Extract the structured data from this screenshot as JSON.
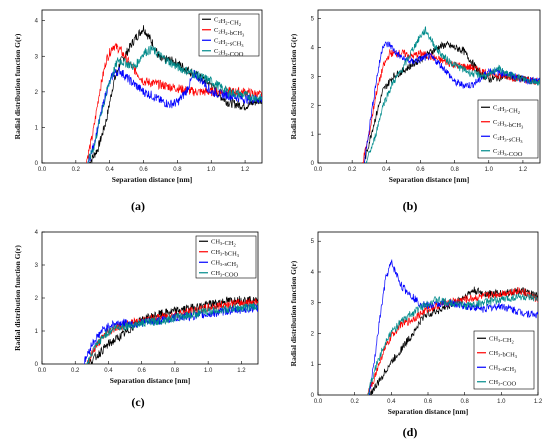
{
  "figure": {
    "panel_labels": [
      "(a)",
      "(b)",
      "(c)",
      "(d)"
    ]
  },
  "chart_data": [
    {
      "type": "line",
      "panel": "(a)",
      "xlabel": "Separation distance [nm]",
      "ylabel": "Radial distribution function G(r)",
      "xlim": [
        0.0,
        1.3
      ],
      "ylim": [
        0,
        4.3
      ],
      "xticks": [
        "0.0",
        "0.2",
        "0.4",
        "0.6",
        "0.8",
        "1.0",
        "1.2"
      ],
      "yticks": [
        "0",
        "1",
        "2",
        "3",
        "4"
      ],
      "legend_position": "top-right",
      "series": [
        {
          "name": "C2H2-CH2",
          "color": "#000000",
          "x": [
            0.28,
            0.33,
            0.38,
            0.42,
            0.46,
            0.5,
            0.55,
            0.6,
            0.65,
            0.7,
            0.75,
            0.8,
            0.9,
            1.0,
            1.05,
            1.1,
            1.2,
            1.3
          ],
          "values": [
            0,
            0.4,
            1.2,
            2.2,
            2.8,
            3.1,
            3.5,
            3.8,
            3.4,
            2.9,
            2.9,
            2.8,
            2.5,
            2.2,
            1.9,
            1.7,
            1.6,
            1.8
          ]
        },
        {
          "name": "C2H2-bCH3",
          "color": "#ff0000",
          "x": [
            0.26,
            0.3,
            0.34,
            0.38,
            0.42,
            0.46,
            0.5,
            0.55,
            0.6,
            0.7,
            0.8,
            0.9,
            1.0,
            1.1,
            1.2,
            1.3
          ],
          "values": [
            0,
            0.8,
            2.0,
            2.9,
            3.3,
            3.2,
            2.9,
            2.6,
            2.3,
            2.2,
            2.1,
            2.0,
            2.0,
            2.0,
            2.0,
            1.9
          ]
        },
        {
          "name": "C2H2-sCH3",
          "color": "#0000ff",
          "x": [
            0.27,
            0.3,
            0.34,
            0.38,
            0.42,
            0.46,
            0.5,
            0.55,
            0.6,
            0.65,
            0.7,
            0.75,
            0.8,
            0.85,
            0.9,
            0.95,
            1.0,
            1.1,
            1.2,
            1.3
          ],
          "values": [
            0,
            0.4,
            1.2,
            2.0,
            2.5,
            2.6,
            2.4,
            2.2,
            2.0,
            1.9,
            1.75,
            1.65,
            1.7,
            2.0,
            2.5,
            2.3,
            2.0,
            1.9,
            1.8,
            1.8
          ]
        },
        {
          "name": "C2H2-COO",
          "color": "#008b8b",
          "x": [
            0.27,
            0.31,
            0.35,
            0.4,
            0.45,
            0.5,
            0.55,
            0.6,
            0.65,
            0.7,
            0.8,
            0.9,
            1.0,
            1.1,
            1.2,
            1.3
          ],
          "values": [
            0,
            0.5,
            1.4,
            2.3,
            2.9,
            2.8,
            2.7,
            3.1,
            3.2,
            3.0,
            2.7,
            2.5,
            2.3,
            2.0,
            1.9,
            1.8
          ]
        }
      ]
    },
    {
      "type": "line",
      "panel": "(b)",
      "xlabel": "Separation distance [nm]",
      "ylabel": "Radial distribution function G(r)",
      "xlim": [
        0.0,
        1.3
      ],
      "ylim": [
        0,
        5.3
      ],
      "xticks": [
        "0.0",
        "0.2",
        "0.4",
        "0.6",
        "0.8",
        "1.0",
        "1.2"
      ],
      "yticks": [
        "0",
        "1",
        "2",
        "3",
        "4",
        "5"
      ],
      "legend_position": "bottom-right",
      "series": [
        {
          "name": "C2H3-CH2",
          "color": "#000000",
          "x": [
            0.27,
            0.32,
            0.38,
            0.44,
            0.5,
            0.55,
            0.6,
            0.65,
            0.7,
            0.75,
            0.8,
            0.85,
            0.9,
            0.95,
            1.0,
            1.1,
            1.2,
            1.3
          ],
          "values": [
            0,
            1.2,
            2.5,
            3.0,
            3.2,
            3.4,
            3.6,
            3.8,
            4.0,
            4.1,
            4.0,
            3.9,
            3.5,
            3.1,
            2.9,
            3.0,
            2.9,
            2.8
          ]
        },
        {
          "name": "C2H3-bCH3",
          "color": "#ff0000",
          "x": [
            0.26,
            0.3,
            0.34,
            0.38,
            0.42,
            0.46,
            0.5,
            0.55,
            0.6,
            0.65,
            0.7,
            0.8,
            0.9,
            1.0,
            1.1,
            1.2,
            1.3
          ],
          "values": [
            0,
            1.0,
            2.4,
            3.3,
            3.8,
            3.8,
            3.8,
            3.7,
            3.8,
            3.7,
            3.6,
            3.4,
            3.3,
            3.1,
            3.0,
            2.9,
            2.8
          ]
        },
        {
          "name": "C2H3-sCH3",
          "color": "#0000ff",
          "x": [
            0.27,
            0.3,
            0.34,
            0.38,
            0.42,
            0.46,
            0.5,
            0.55,
            0.6,
            0.65,
            0.7,
            0.75,
            0.8,
            0.85,
            0.9,
            0.95,
            1.0,
            1.1,
            1.2,
            1.3
          ],
          "values": [
            0,
            1.2,
            2.8,
            4.1,
            4.1,
            3.8,
            3.6,
            3.5,
            3.6,
            3.7,
            3.5,
            3.2,
            2.8,
            2.7,
            2.7,
            2.9,
            3.2,
            3.1,
            2.9,
            2.8
          ]
        },
        {
          "name": "C2H3-COO",
          "color": "#008b8b",
          "x": [
            0.28,
            0.33,
            0.38,
            0.44,
            0.5,
            0.55,
            0.6,
            0.63,
            0.66,
            0.7,
            0.75,
            0.8,
            0.9,
            1.0,
            1.05,
            1.1,
            1.2,
            1.3
          ],
          "values": [
            0,
            0.8,
            2.0,
            2.8,
            3.3,
            3.9,
            4.4,
            4.6,
            4.3,
            3.9,
            3.6,
            3.4,
            3.1,
            3.0,
            3.3,
            3.1,
            2.9,
            2.8
          ]
        }
      ]
    },
    {
      "type": "line",
      "panel": "(c)",
      "xlabel": "Separation distance [nm]",
      "ylabel": "Radial distribution function G(r)",
      "xlim": [
        0.0,
        1.3
      ],
      "ylim": [
        0,
        4.0
      ],
      "xticks": [
        "0.0",
        "0.2",
        "0.4",
        "0.6",
        "0.8",
        "1.0",
        "1.2"
      ],
      "yticks": [
        "0",
        "1",
        "2",
        "3",
        "4"
      ],
      "legend_position": "top-right",
      "series": [
        {
          "name": "CH3-CH2",
          "color": "#000000",
          "x": [
            0.28,
            0.34,
            0.4,
            0.46,
            0.52,
            0.58,
            0.64,
            0.7,
            0.8,
            0.9,
            1.0,
            1.1,
            1.2,
            1.3
          ],
          "values": [
            0,
            0.3,
            0.6,
            0.8,
            1.0,
            1.3,
            1.4,
            1.5,
            1.6,
            1.7,
            1.8,
            1.9,
            1.95,
            1.9
          ]
        },
        {
          "name": "CH3-bCH3",
          "color": "#ff0000",
          "x": [
            0.27,
            0.32,
            0.38,
            0.44,
            0.5,
            0.6,
            0.7,
            0.8,
            0.9,
            1.0,
            1.1,
            1.2,
            1.3
          ],
          "values": [
            0,
            0.5,
            0.9,
            1.1,
            1.2,
            1.3,
            1.4,
            1.5,
            1.6,
            1.7,
            1.8,
            1.85,
            1.9
          ]
        },
        {
          "name": "CH3-sCH3",
          "color": "#0000ff",
          "x": [
            0.25,
            0.3,
            0.36,
            0.42,
            0.48,
            0.55,
            0.6,
            0.7,
            0.8,
            0.9,
            1.0,
            1.1,
            1.2,
            1.3
          ],
          "values": [
            0,
            0.6,
            1.0,
            1.2,
            1.25,
            1.2,
            1.25,
            1.3,
            1.4,
            1.45,
            1.5,
            1.6,
            1.65,
            1.7
          ]
        },
        {
          "name": "CH3-COO",
          "color": "#008b8b",
          "x": [
            0.27,
            0.32,
            0.38,
            0.44,
            0.5,
            0.56,
            0.62,
            0.7,
            0.8,
            0.9,
            1.0,
            1.1,
            1.2,
            1.3
          ],
          "values": [
            0,
            0.5,
            0.9,
            1.1,
            1.15,
            1.2,
            1.25,
            1.3,
            1.4,
            1.5,
            1.6,
            1.65,
            1.7,
            1.75
          ]
        }
      ]
    },
    {
      "type": "line",
      "panel": "(d)",
      "xlabel": "Separation distance [nm]",
      "ylabel": "Radial distribution function G(r)",
      "xlim": [
        0.0,
        1.2
      ],
      "ylim": [
        0,
        5.3
      ],
      "xticks": [
        "0.0",
        "0.2",
        "0.4",
        "0.6",
        "0.8",
        "1.0",
        "1.2"
      ],
      "yticks": [
        "0",
        "1",
        "2",
        "3",
        "4",
        "5"
      ],
      "legend_position": "bottom-right",
      "series": [
        {
          "name": "CH3-CH2",
          "color": "#000000",
          "x": [
            0.28,
            0.33,
            0.38,
            0.43,
            0.48,
            0.53,
            0.58,
            0.63,
            0.68,
            0.75,
            0.8,
            0.85,
            0.9,
            1.0,
            1.1,
            1.2
          ],
          "values": [
            0,
            0.4,
            0.9,
            1.3,
            1.7,
            2.1,
            2.6,
            2.7,
            2.8,
            3.0,
            3.2,
            3.4,
            3.3,
            3.3,
            3.4,
            3.2
          ]
        },
        {
          "name": "CH3-bCH3",
          "color": "#ff0000",
          "x": [
            0.27,
            0.31,
            0.35,
            0.4,
            0.45,
            0.5,
            0.55,
            0.6,
            0.65,
            0.7,
            0.8,
            0.9,
            1.0,
            1.1,
            1.2
          ],
          "values": [
            0,
            0.6,
            1.3,
            1.9,
            2.3,
            2.4,
            2.6,
            2.8,
            2.9,
            3.0,
            3.1,
            3.2,
            3.3,
            3.4,
            3.1
          ]
        },
        {
          "name": "CH3-sCH3",
          "color": "#0000ff",
          "x": [
            0.28,
            0.31,
            0.34,
            0.37,
            0.4,
            0.43,
            0.46,
            0.5,
            0.55,
            0.6,
            0.7,
            0.8,
            0.9,
            1.0,
            1.1,
            1.2
          ],
          "values": [
            0,
            1.2,
            2.6,
            3.8,
            4.3,
            3.9,
            3.5,
            3.3,
            3.0,
            2.9,
            3.0,
            2.9,
            2.8,
            2.9,
            2.7,
            2.6
          ]
        },
        {
          "name": "CH3-COO",
          "color": "#008b8b",
          "x": [
            0.27,
            0.32,
            0.38,
            0.44,
            0.5,
            0.55,
            0.6,
            0.65,
            0.7,
            0.75,
            0.8,
            0.9,
            1.0,
            1.1,
            1.2
          ],
          "values": [
            0,
            1.0,
            1.9,
            2.3,
            2.6,
            2.8,
            3.0,
            3.1,
            3.0,
            3.0,
            2.9,
            3.0,
            3.1,
            3.2,
            3.1
          ]
        }
      ]
    }
  ]
}
